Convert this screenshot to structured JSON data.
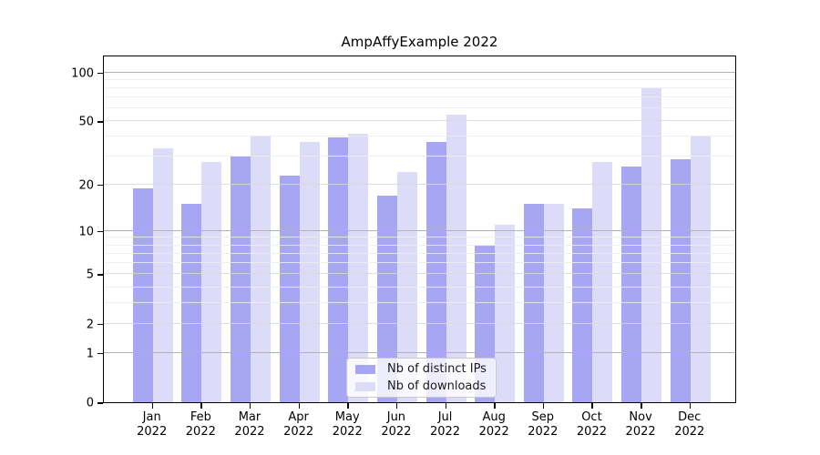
{
  "title": "AmpAffyExample 2022",
  "chart_data": {
    "type": "bar",
    "title": "AmpAffyExample 2022",
    "categories": [
      "Jan",
      "Feb",
      "Mar",
      "Apr",
      "May",
      "Jun",
      "Jul",
      "Aug",
      "Sep",
      "Oct",
      "Nov",
      "Dec"
    ],
    "year_label": "2022",
    "series": [
      {
        "name": "Nb of distinct IPs",
        "color": "#a6a6f2",
        "values": [
          19,
          15,
          30,
          23,
          40,
          17,
          37,
          8,
          15,
          14,
          26,
          29
        ]
      },
      {
        "name": "Nb of downloads",
        "color": "#dcdcf8",
        "values": [
          34,
          28,
          41,
          37,
          42,
          24,
          55,
          11,
          15,
          28,
          80,
          41
        ]
      }
    ],
    "xlabel": "",
    "ylabel": "",
    "yscale": "log1p",
    "yticks": [
      0,
      1,
      2,
      5,
      10,
      20,
      50,
      100
    ],
    "ytick_labels": [
      "0",
      "1",
      "2",
      "5",
      "10",
      "20",
      "50",
      "100"
    ],
    "ylim": [
      0,
      130
    ],
    "grid": "on",
    "legend_position": "lower center"
  },
  "colors": {
    "grid_strong": "#b2b2b2",
    "grid_mid": "#d8d8d8",
    "grid_minor": "#ededed",
    "spine": "#000000",
    "background": "#ffffff"
  }
}
